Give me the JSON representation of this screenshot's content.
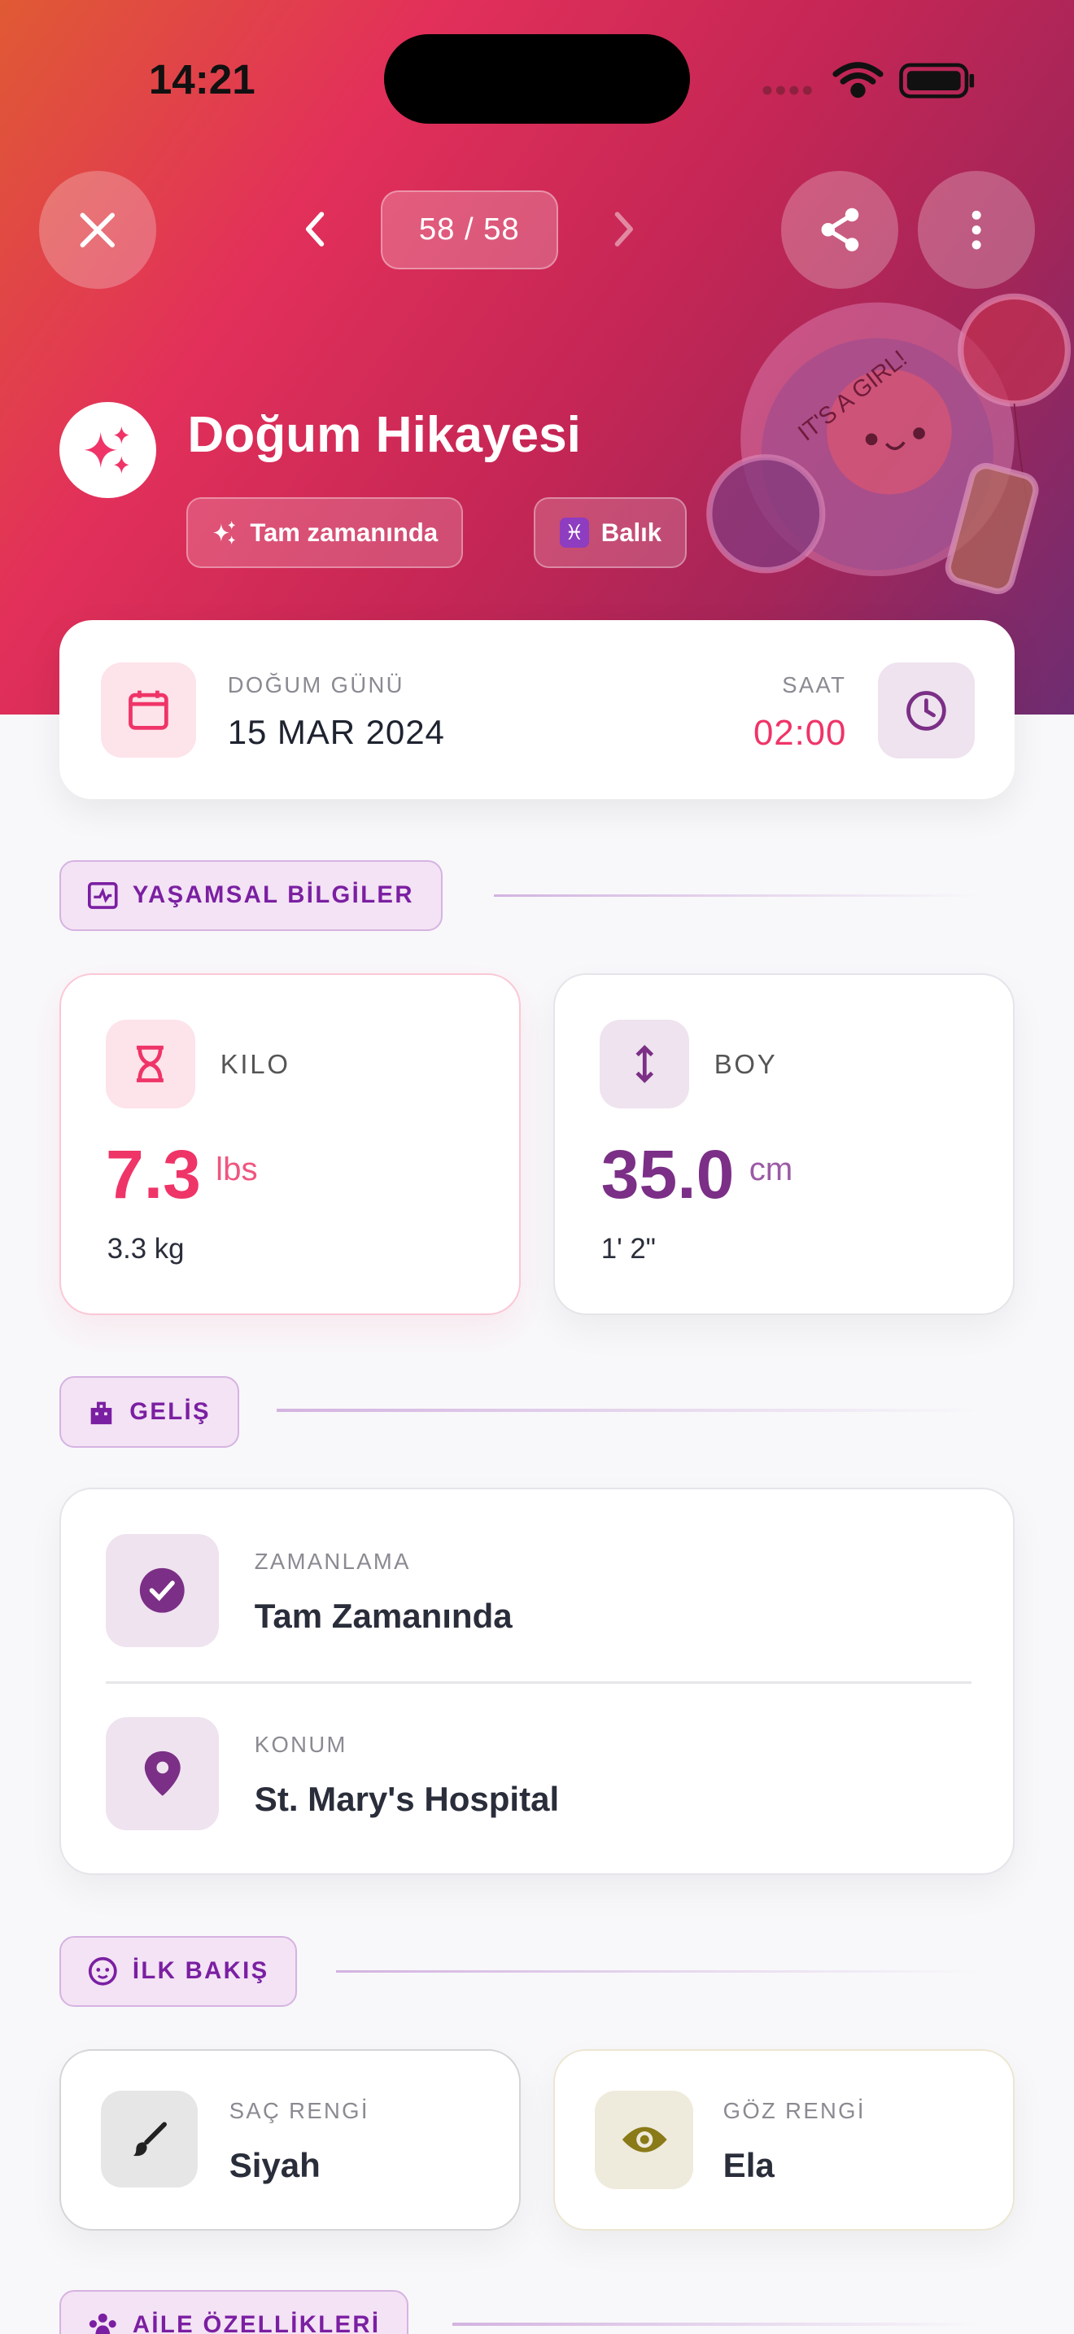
{
  "status_bar": {
    "time": "14:21"
  },
  "nav": {
    "counter": "58 / 58",
    "close_icon": "close-icon",
    "prev_icon": "chevron-left-icon",
    "next_icon": "chevron-right-icon",
    "share_icon": "share-icon",
    "more_icon": "more-vertical-icon"
  },
  "header": {
    "title": "Doğum Hikayesi",
    "chips": [
      {
        "icon": "sparkles-icon",
        "label": "Tam zamanında"
      },
      {
        "icon": "pisces-icon",
        "label": "Balık"
      }
    ],
    "sticker_text": "IT'S A GIRL!"
  },
  "birth": {
    "date_label": "DOĞUM GÜNÜ",
    "date": "15 MAR 2024",
    "time_label": "SAAT",
    "time": "02:00"
  },
  "vitals": {
    "section": "YAŞAMSAL BİLGİLER",
    "weight": {
      "label": "KILO",
      "value": "7.3",
      "unit": "lbs",
      "secondary": "3.3 kg"
    },
    "height": {
      "label": "BOY",
      "value": "35.0",
      "unit": "cm",
      "secondary": "1' 2\""
    }
  },
  "arrival": {
    "section": "GELİŞ",
    "rows": [
      {
        "label": "ZAMANLAMA",
        "value": "Tam Zamanında"
      },
      {
        "label": "KONUM",
        "value": "St. Mary's Hospital"
      }
    ]
  },
  "first_look": {
    "section": "İLK BAKIŞ",
    "hair": {
      "label": "SAÇ RENGİ",
      "value": "Siyah"
    },
    "eyes": {
      "label": "GÖZ RENGİ",
      "value": "Ela"
    }
  },
  "family": {
    "section": "AİLE ÖZELLİKLERİ"
  },
  "colors": {
    "accent_pink": "#ef3468",
    "accent_purple": "#7b2f86",
    "section_purple": "#7b1fa2"
  }
}
